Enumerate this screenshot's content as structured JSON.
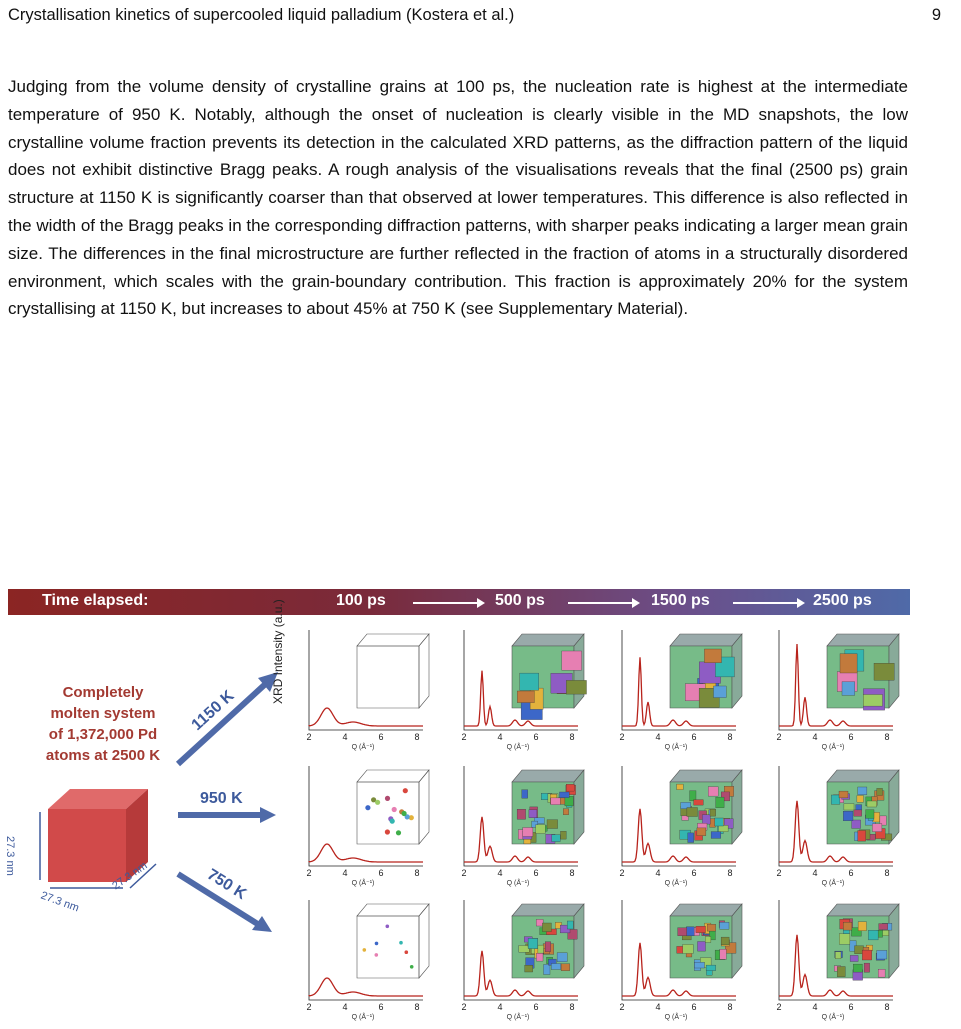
{
  "header": {
    "title": "Crystallisation kinetics of supercooled liquid palladium (Kostera et al.)",
    "page_number": "9"
  },
  "body_paragraph": "Judging from the volume density of crystalline grains at 100 ps, the nucleation rate is highest at the intermediate temperature of 950 K. Notably, although the onset of nucleation is clearly visible in the MD snapshots, the low crystalline volume fraction prevents its detection in the calculated XRD patterns, as the diffraction pattern of the liquid does not exhibit distinctive Bragg peaks. A rough analysis of the visualisations reveals that the final (2500 ps) grain structure at 1150 K is significantly coarser than that observed at lower temperatures. This difference is also reflected in the width of the Bragg peaks in the corresponding diffraction patterns, with sharper peaks indicating a larger mean grain size. The differences in the final microstructure are further reflected in the fraction of atoms in a structurally disordered environment, which scales with the grain-boundary contribution. This fraction is approximately 20% for the system crystallising at 1150 K, but increases to about 45% at 750 K (see Supplementary Material).",
  "figure": {
    "time_label": "Time elapsed:",
    "times": [
      "100 ps",
      "500 ps",
      "1500 ps",
      "2500 ps"
    ],
    "initial_state": [
      "Completely",
      "molten system",
      "of 1,372,000 Pd",
      "atoms at 2500 K"
    ],
    "box_dims": {
      "height": "27.3 nm",
      "width": "27.3 nm",
      "depth": "27.3 nm"
    },
    "temperatures": [
      "1150 K",
      "950 K",
      "750 K"
    ],
    "y_axis_label": "XRD Intensity (a.u.)",
    "x_axis_label": "Q (Å⁻¹)",
    "x_ticks": [
      "2",
      "4",
      "6",
      "8"
    ],
    "colors": {
      "curve": "#b8231c",
      "arrow": "#4f6aa8",
      "molten": "#d14a4a"
    }
  }
}
